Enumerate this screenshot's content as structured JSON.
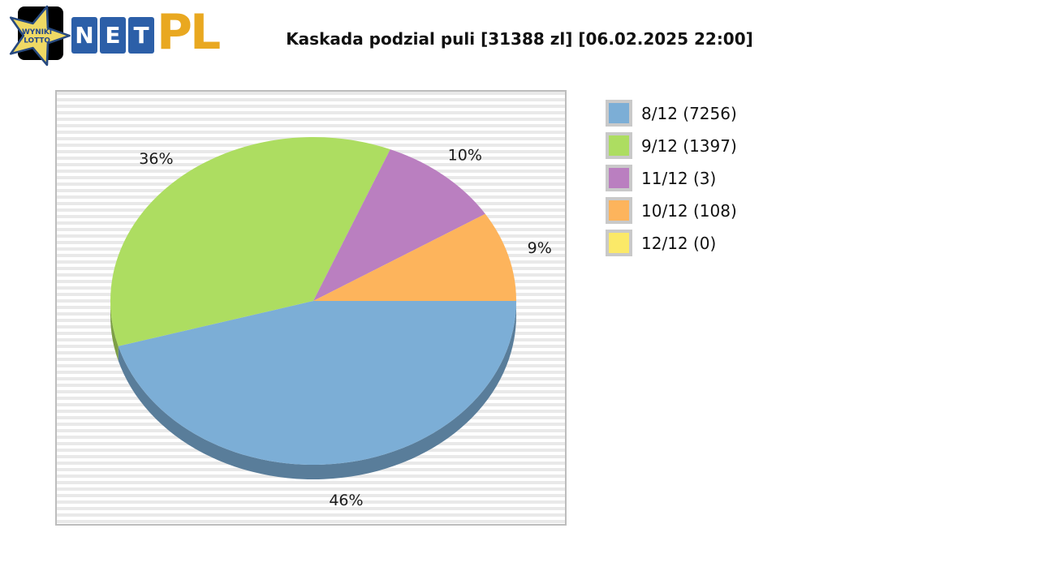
{
  "logo": {
    "star_line1": "WYNIKI",
    "star_line2": "LOTTO",
    "net_letters": [
      "N",
      "E",
      "T"
    ],
    "suffix": "PL",
    "colors": {
      "box_blue": "#2C5FA8",
      "star_yellow": "#EFD964",
      "star_border": "#27497F",
      "star_text": "#24488A",
      "pl_gold": "#E9A820",
      "backdrop_black": "#000000"
    }
  },
  "header": {
    "title": "Kaskada podzial puli [31388 zl] [06.02.2025 22:00]",
    "game": "Kaskada",
    "pool": "31388 zl",
    "timestamp": "06.02.2025 22:00"
  },
  "chart_data": {
    "type": "pie",
    "style": "3d",
    "title": "Kaskada podzial puli [31388 zl] [06.02.2025 22:00]",
    "legend_position": "right",
    "labels_show_percent": true,
    "start_angle_deg": 0,
    "direction": "clockwise-from-east",
    "slices": [
      {
        "label": "8/12 (7256)",
        "tier": "8/12",
        "winners": 7256,
        "percent": 46,
        "color": "#7CAED6",
        "percent_label": "46%"
      },
      {
        "label": "9/12 (1397)",
        "tier": "9/12",
        "winners": 1397,
        "percent": 36,
        "color": "#ADDD61",
        "percent_label": "36%"
      },
      {
        "label": "11/12 (3)",
        "tier": "11/12",
        "winners": 3,
        "percent": 10,
        "color": "#BA7FC0",
        "percent_label": "10%"
      },
      {
        "label": "10/12 (108)",
        "tier": "10/12",
        "winners": 108,
        "percent": 9,
        "color": "#FDB45C",
        "percent_label": "9%"
      },
      {
        "label": "12/12 (0)",
        "tier": "12/12",
        "winners": 0,
        "percent": 0,
        "color": "#FBE968",
        "percent_label": "0%"
      }
    ],
    "side_darken_factor": 0.72,
    "label_color": "#1a1a1a"
  }
}
